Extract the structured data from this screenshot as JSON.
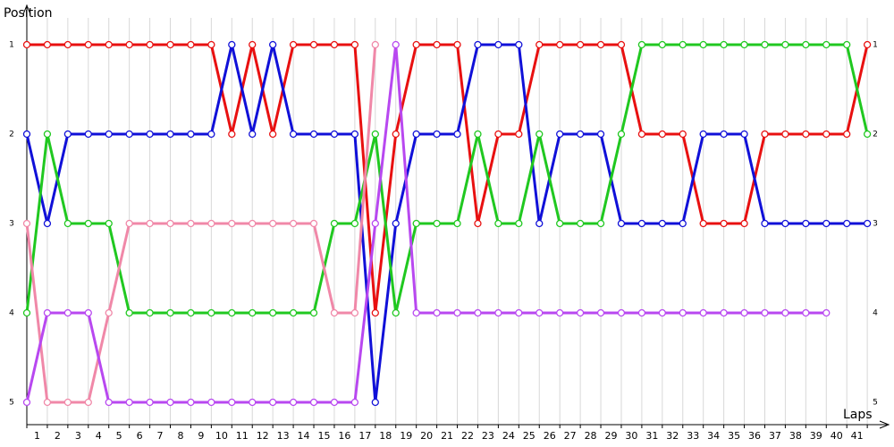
{
  "chart_data": {
    "type": "line",
    "y_label": "Position",
    "x_label": "Laps",
    "x": [
      0,
      1,
      2,
      3,
      4,
      5,
      6,
      7,
      8,
      9,
      10,
      11,
      12,
      13,
      14,
      15,
      16,
      17,
      18,
      19,
      20,
      21,
      22,
      23,
      24,
      25,
      26,
      27,
      28,
      29,
      30,
      31,
      32,
      33,
      34,
      35,
      36,
      37,
      38,
      39,
      40,
      41
    ],
    "xlim": [
      0,
      41.6
    ],
    "xticks": [
      {
        "value": 0.5,
        "label": "1"
      },
      {
        "value": 1.5,
        "label": "2"
      },
      {
        "value": 2.5,
        "label": "3"
      },
      {
        "value": 3.5,
        "label": "4"
      },
      {
        "value": 4.5,
        "label": "5"
      },
      {
        "value": 5.5,
        "label": "6"
      },
      {
        "value": 6.5,
        "label": "7"
      },
      {
        "value": 7.5,
        "label": "8"
      },
      {
        "value": 8.5,
        "label": "9"
      },
      {
        "value": 9.5,
        "label": "10"
      },
      {
        "value": 10.5,
        "label": "11"
      },
      {
        "value": 11.5,
        "label": "12"
      },
      {
        "value": 12.5,
        "label": "13"
      },
      {
        "value": 13.5,
        "label": "14"
      },
      {
        "value": 14.5,
        "label": "15"
      },
      {
        "value": 15.5,
        "label": "16"
      },
      {
        "value": 16.5,
        "label": "17"
      },
      {
        "value": 17.5,
        "label": "18"
      },
      {
        "value": 18.5,
        "label": "19"
      },
      {
        "value": 19.5,
        "label": "20"
      },
      {
        "value": 20.5,
        "label": "21"
      },
      {
        "value": 21.5,
        "label": "22"
      },
      {
        "value": 22.5,
        "label": "23"
      },
      {
        "value": 23.5,
        "label": "24"
      },
      {
        "value": 24.5,
        "label": "25"
      },
      {
        "value": 25.5,
        "label": "26"
      },
      {
        "value": 26.5,
        "label": "27"
      },
      {
        "value": 27.5,
        "label": "28"
      },
      {
        "value": 28.5,
        "label": "29"
      },
      {
        "value": 29.5,
        "label": "30"
      },
      {
        "value": 30.5,
        "label": "31"
      },
      {
        "value": 31.5,
        "label": "32"
      },
      {
        "value": 32.5,
        "label": "33"
      },
      {
        "value": 33.5,
        "label": "34"
      },
      {
        "value": 34.5,
        "label": "35"
      },
      {
        "value": 35.5,
        "label": "36"
      },
      {
        "value": 36.5,
        "label": "37"
      },
      {
        "value": 37.5,
        "label": "38"
      },
      {
        "value": 38.5,
        "label": "39"
      },
      {
        "value": 39.5,
        "label": "40"
      },
      {
        "value": 40.5,
        "label": "41"
      }
    ],
    "ylim": [
      5.25,
      0.7
    ],
    "yticks": [
      1,
      2,
      3,
      4,
      5
    ],
    "grid": true,
    "series": [
      {
        "name": "red",
        "color": "#e81010",
        "values": [
          1,
          1,
          1,
          1,
          1,
          1,
          1,
          1,
          1,
          1,
          2,
          1,
          2,
          1,
          1,
          1,
          1,
          4,
          2,
          1,
          1,
          1,
          3,
          2,
          2,
          1,
          1,
          1,
          1,
          1,
          2,
          2,
          2,
          3,
          3,
          3,
          2,
          2,
          2,
          2,
          2,
          1
        ]
      },
      {
        "name": "blue",
        "color": "#1010d8",
        "values": [
          2,
          3,
          2,
          2,
          2,
          2,
          2,
          2,
          2,
          2,
          1,
          2,
          1,
          2,
          2,
          2,
          2,
          5,
          3,
          2,
          2,
          2,
          1,
          1,
          1,
          3,
          2,
          2,
          2,
          3,
          3,
          3,
          3,
          2,
          2,
          2,
          3,
          3,
          3,
          3,
          3,
          3
        ]
      },
      {
        "name": "green",
        "color": "#20c820",
        "values": [
          4,
          2,
          3,
          3,
          3,
          4,
          4,
          4,
          4,
          4,
          4,
          4,
          4,
          4,
          4,
          3,
          3,
          2,
          4,
          3,
          3,
          3,
          2,
          3,
          3,
          2,
          3,
          3,
          3,
          2,
          1,
          1,
          1,
          1,
          1,
          1,
          1,
          1,
          1,
          1,
          1,
          2
        ]
      },
      {
        "name": "pink",
        "color": "#f088a8",
        "values": [
          3,
          5,
          5,
          5,
          4,
          3,
          3,
          3,
          3,
          3,
          3,
          3,
          3,
          3,
          3,
          4,
          4,
          1,
          null,
          null,
          null,
          null,
          null,
          null,
          null,
          null,
          null,
          null,
          null,
          null,
          null,
          null,
          null,
          null,
          null,
          null,
          null,
          null,
          null,
          null,
          null,
          null
        ]
      },
      {
        "name": "purple",
        "color": "#b848f0",
        "values": [
          5,
          4,
          4,
          4,
          5,
          5,
          5,
          5,
          5,
          5,
          5,
          5,
          5,
          5,
          5,
          5,
          5,
          3,
          1,
          4,
          4,
          4,
          4,
          4,
          4,
          4,
          4,
          4,
          4,
          4,
          4,
          4,
          4,
          4,
          4,
          4,
          4,
          4,
          4,
          4,
          null,
          null
        ]
      }
    ]
  }
}
